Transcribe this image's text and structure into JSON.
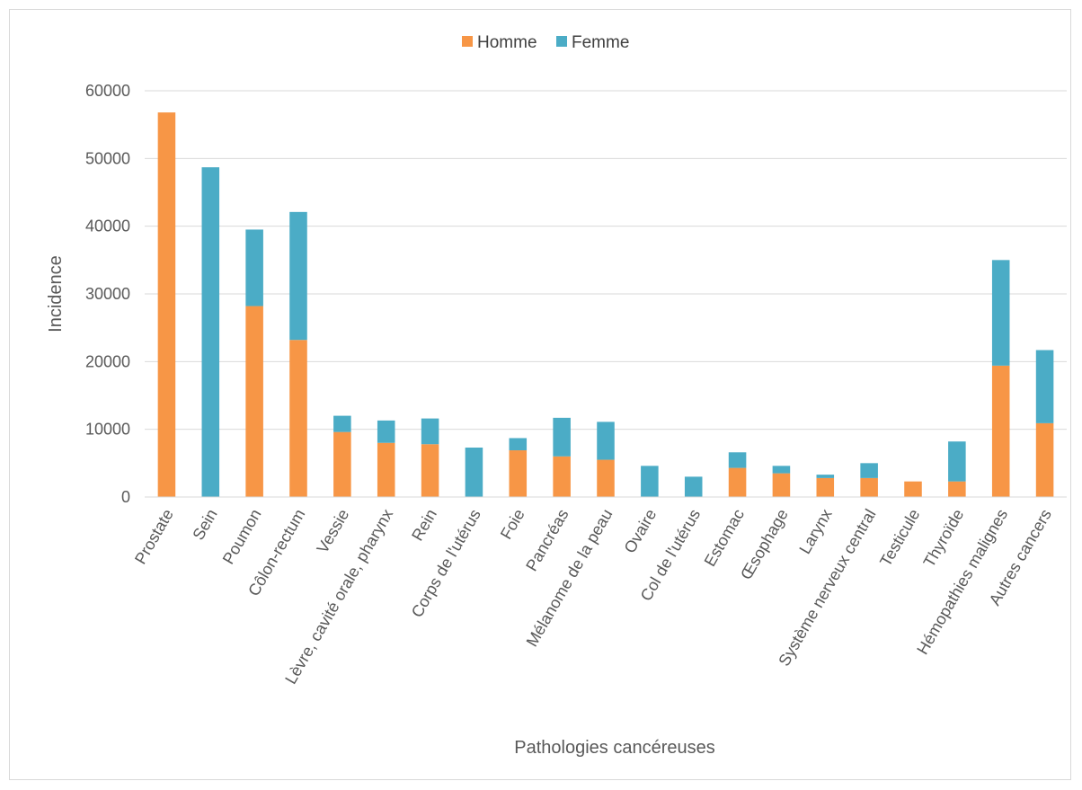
{
  "chart_data": {
    "type": "bar",
    "stacked": true,
    "xlabel": "Pathologies cancéreuses",
    "ylabel": "Incidence",
    "ylim": [
      0,
      60000
    ],
    "yticks": [
      0,
      10000,
      20000,
      30000,
      40000,
      50000,
      60000
    ],
    "grid": true,
    "legend_position": "top",
    "categories": [
      "Prostate",
      "Sein",
      "Poumon",
      "Côlon-rectum",
      "Vessie",
      "Lèvre, cavité orale, pharynx",
      "Rein",
      "Corps de l'utérus",
      "Foie",
      "Pancréas",
      "Mélanome de la peau",
      "Ovaire",
      "Col de l'utérus",
      "Estomac",
      "Œsophage",
      "Larynx",
      "Système nerveux central",
      "Testicule",
      "Thyroïde",
      "Hémopathies malignes",
      "Autres cancers"
    ],
    "series": [
      {
        "name": "Homme",
        "color": "#f79646",
        "values": [
          56800,
          0,
          28200,
          23200,
          9600,
          8000,
          7800,
          0,
          6900,
          6000,
          5500,
          0,
          0,
          4300,
          3500,
          2800,
          2800,
          2300,
          2300,
          19400,
          10900
        ]
      },
      {
        "name": "Femme",
        "color": "#4bacc6",
        "values": [
          0,
          48700,
          11300,
          18900,
          2400,
          3300,
          3800,
          7300,
          1800,
          5700,
          5600,
          4600,
          3000,
          2300,
          1100,
          500,
          2200,
          0,
          5900,
          15600,
          10800
        ]
      }
    ]
  }
}
